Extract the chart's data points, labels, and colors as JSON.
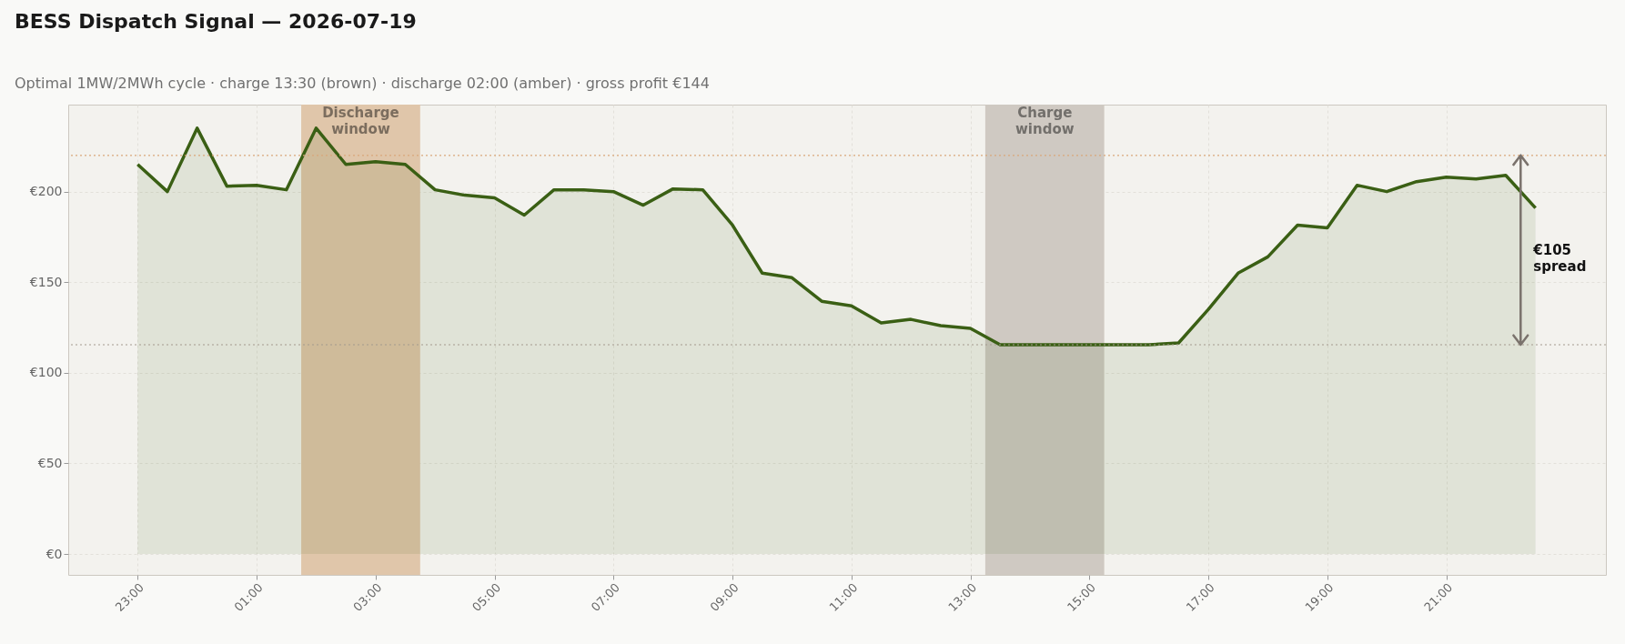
{
  "chart_data": {
    "type": "area",
    "title": "BESS Dispatch Signal — 2026-07-19",
    "subtitle": "Optimal 1MW/2MWh cycle  ·  charge 13:30 (brown)  ·  discharge 02:00 (amber)  ·  gross profit €144",
    "x": [
      "2026-07-18T23:00",
      "2026-07-18T23:30",
      "2026-07-19T00:00",
      "2026-07-19T00:30",
      "2026-07-19T01:00",
      "2026-07-19T01:30",
      "2026-07-19T02:00",
      "2026-07-19T02:30",
      "2026-07-19T03:00",
      "2026-07-19T03:30",
      "2026-07-19T04:00",
      "2026-07-19T04:30",
      "2026-07-19T05:00",
      "2026-07-19T05:30",
      "2026-07-19T06:00",
      "2026-07-19T06:30",
      "2026-07-19T07:00",
      "2026-07-19T07:30",
      "2026-07-19T08:00",
      "2026-07-19T08:30",
      "2026-07-19T09:00",
      "2026-07-19T09:30",
      "2026-07-19T10:00",
      "2026-07-19T10:30",
      "2026-07-19T11:00",
      "2026-07-19T11:30",
      "2026-07-19T12:00",
      "2026-07-19T12:30",
      "2026-07-19T13:00",
      "2026-07-19T13:30",
      "2026-07-19T14:00",
      "2026-07-19T14:30",
      "2026-07-19T15:00",
      "2026-07-19T15:30",
      "2026-07-19T16:00",
      "2026-07-19T16:30",
      "2026-07-19T17:00",
      "2026-07-19T17:30",
      "2026-07-19T18:00",
      "2026-07-19T18:30",
      "2026-07-19T19:00",
      "2026-07-19T19:30",
      "2026-07-19T20:00",
      "2026-07-19T20:30",
      "2026-07-19T21:00",
      "2026-07-19T21:30",
      "2026-07-19T22:00",
      "2026-07-19T22:30"
    ],
    "series": [
      {
        "color": "#3a5f14",
        "values": [
          215,
          200,
          235,
          203,
          203.5,
          201,
          235,
          215,
          216.5,
          215,
          201,
          198,
          196.5,
          187,
          201,
          201,
          200,
          192.5,
          201.5,
          201,
          181.5,
          155,
          152.5,
          139.5,
          137,
          127.5,
          129.5,
          126,
          124.5,
          115.5,
          115.5,
          115.5,
          115.5,
          115.5,
          115.5,
          116.5,
          135,
          155,
          164,
          181.5,
          180,
          203.5,
          200,
          205.5,
          208,
          207,
          209,
          191
        ]
      }
    ],
    "xlim": [
      "2026-07-18T21:50",
      "2026-07-19T23:41"
    ],
    "ylim": [
      -11.5,
      248
    ],
    "xticks": [
      {
        "value": "2026-07-18T23:00",
        "label": "23:00"
      },
      {
        "value": "2026-07-19T01:00",
        "label": "01:00"
      },
      {
        "value": "2026-07-19T03:00",
        "label": "03:00"
      },
      {
        "value": "2026-07-19T05:00",
        "label": "05:00"
      },
      {
        "value": "2026-07-19T07:00",
        "label": "07:00"
      },
      {
        "value": "2026-07-19T09:00",
        "label": "09:00"
      },
      {
        "value": "2026-07-19T11:00",
        "label": "11:00"
      },
      {
        "value": "2026-07-19T13:00",
        "label": "13:00"
      },
      {
        "value": "2026-07-19T15:00",
        "label": "15:00"
      },
      {
        "value": "2026-07-19T17:00",
        "label": "17:00"
      },
      {
        "value": "2026-07-19T19:00",
        "label": "19:00"
      },
      {
        "value": "2026-07-19T21:00",
        "label": "21:00"
      }
    ],
    "yticks": [
      {
        "value": 0,
        "label": "€0"
      },
      {
        "value": 50,
        "label": "€50"
      },
      {
        "value": 100,
        "label": "€100"
      },
      {
        "value": 150,
        "label": "€150"
      },
      {
        "value": 200,
        "label": "€200"
      }
    ],
    "grid": true,
    "line_style": "solid",
    "bands": [
      {
        "axis": "x",
        "from": "2026-07-19T01:45",
        "to": "2026-07-19T03:45",
        "label": "Discharge\nwindow",
        "color": "#e0c6aa"
      },
      {
        "axis": "x",
        "from": "2026-07-19T13:15",
        "to": "2026-07-19T15:15",
        "label": "Charge\nwindow",
        "color": "#cfc9c2"
      }
    ],
    "ref_lines": [
      {
        "axis": "y",
        "value": 220,
        "color": "#d9a77a",
        "line_style": "dotted"
      },
      {
        "axis": "y",
        "value": 115.5,
        "color": "#a39a8e",
        "line_style": "dotted"
      }
    ],
    "annotations": [
      "€105\nspread"
    ]
  }
}
